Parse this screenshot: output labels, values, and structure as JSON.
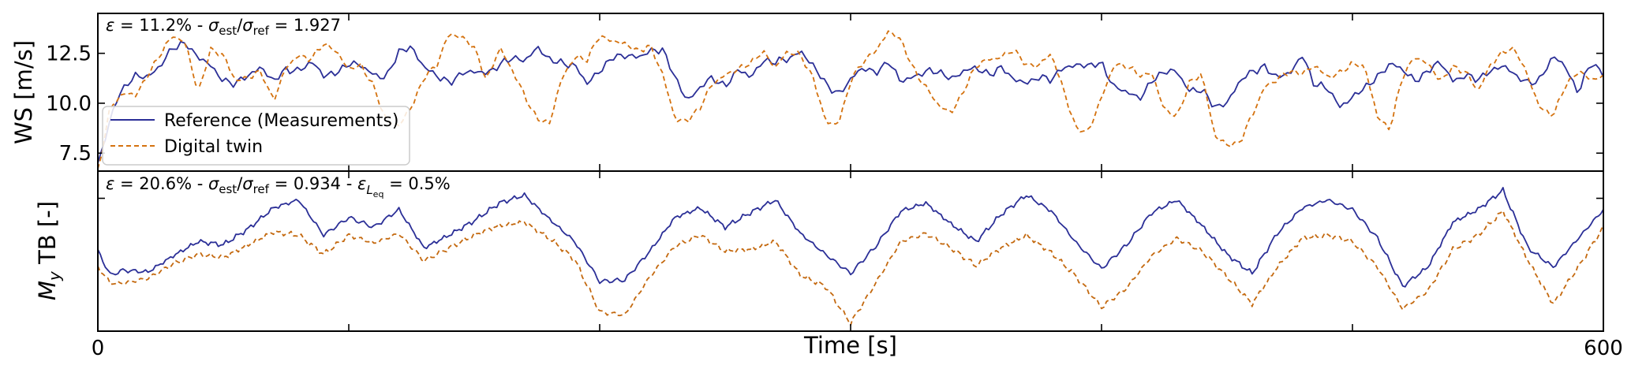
{
  "chart_data": [
    {
      "type": "line",
      "panel": "top",
      "annotation": "ε = 11.2% - σest/σref = 1.927",
      "ylabel": "WS [m/s]",
      "xlim": [
        0,
        600
      ],
      "ylim": [
        6.6,
        14.5
      ],
      "yticks": [
        7.5,
        10.0,
        12.5
      ],
      "ytick_labels": [
        "7.5",
        "10.0",
        "12.5"
      ],
      "grid": false,
      "legend": {
        "placement": "lower-left"
      },
      "series": [
        {
          "name": "Reference (Measurements)",
          "color": "#2b2f97",
          "style": "solid",
          "x": [
            0,
            8,
            15,
            20,
            25,
            30,
            35,
            40,
            45,
            50,
            55,
            60,
            65,
            70,
            75,
            80,
            85,
            90,
            95,
            100,
            105,
            110,
            115,
            120,
            125,
            130,
            135,
            140,
            145,
            150,
            155,
            160,
            165,
            170,
            175,
            180,
            185,
            190,
            195,
            200,
            205,
            210,
            215,
            220,
            225,
            230,
            235,
            240,
            245,
            250,
            255,
            260,
            265,
            270,
            275,
            280,
            285,
            290,
            295,
            300,
            305,
            310,
            315,
            320,
            325,
            330,
            335,
            340,
            345,
            350,
            355,
            360,
            365,
            370,
            375,
            380,
            385,
            390,
            395,
            400,
            405,
            410,
            415,
            420,
            425,
            430,
            435,
            440,
            445,
            450,
            455,
            460,
            465,
            470,
            475,
            480,
            485,
            490,
            495,
            500,
            505,
            510,
            515,
            520,
            525,
            530,
            535,
            540,
            545,
            550,
            555,
            560,
            565,
            570,
            575,
            580,
            585,
            590,
            595,
            600
          ],
          "values": [
            7.0,
            10.4,
            11.4,
            11.3,
            11.9,
            12.8,
            13.0,
            12.3,
            11.9,
            11.1,
            11.0,
            11.4,
            11.8,
            11.1,
            11.7,
            11.6,
            12.1,
            11.4,
            11.5,
            12.0,
            11.9,
            11.4,
            11.3,
            12.6,
            12.8,
            11.8,
            11.4,
            11.0,
            11.5,
            11.6,
            11.5,
            11.9,
            12.3,
            12.1,
            12.8,
            12.2,
            12.0,
            11.9,
            11.0,
            11.6,
            12.3,
            12.4,
            12.3,
            12.6,
            12.7,
            11.3,
            10.1,
            10.8,
            11.3,
            10.8,
            11.7,
            11.3,
            12.1,
            12.1,
            12.2,
            12.6,
            11.9,
            11.0,
            10.4,
            11.2,
            11.8,
            11.5,
            12.1,
            11.1,
            11.3,
            11.6,
            11.6,
            11.2,
            11.6,
            11.8,
            11.4,
            11.8,
            11.2,
            11.0,
            11.3,
            11.2,
            11.8,
            11.9,
            11.9,
            12.0,
            10.8,
            10.6,
            10.2,
            11.1,
            11.6,
            11.6,
            10.6,
            10.7,
            9.8,
            10.0,
            11.1,
            11.6,
            11.8,
            11.3,
            11.5,
            12.4,
            10.9,
            10.8,
            9.8,
            10.3,
            10.8,
            11.3,
            12.0,
            11.7,
            11.1,
            11.6,
            12.1,
            11.1,
            11.4,
            11.2,
            11.6,
            11.9,
            11.4,
            11.0,
            11.2,
            12.4,
            11.8,
            10.5,
            12.1,
            11.4
          ]
        },
        {
          "name": "Digital twin",
          "color": "#d4720f",
          "style": "dashed",
          "x": [
            0,
            5,
            10,
            15,
            20,
            25,
            30,
            35,
            40,
            45,
            50,
            55,
            60,
            65,
            70,
            75,
            80,
            85,
            90,
            95,
            100,
            105,
            110,
            115,
            120,
            125,
            130,
            135,
            140,
            145,
            150,
            155,
            160,
            165,
            170,
            175,
            180,
            185,
            190,
            195,
            200,
            205,
            210,
            215,
            220,
            225,
            230,
            235,
            240,
            245,
            250,
            255,
            260,
            265,
            270,
            275,
            280,
            285,
            290,
            295,
            300,
            305,
            310,
            315,
            320,
            325,
            330,
            335,
            340,
            345,
            350,
            355,
            360,
            365,
            370,
            375,
            380,
            385,
            390,
            395,
            400,
            405,
            410,
            415,
            420,
            425,
            430,
            435,
            440,
            445,
            450,
            455,
            460,
            465,
            470,
            475,
            480,
            485,
            490,
            495,
            500,
            505,
            510,
            515,
            520,
            525,
            530,
            535,
            540,
            545,
            550,
            555,
            560,
            565,
            570,
            575,
            580,
            585,
            590,
            595,
            600
          ],
          "values": [
            6.6,
            9.8,
            10.5,
            10.4,
            11.4,
            12.5,
            13.4,
            13.0,
            10.5,
            12.7,
            12.4,
            11.1,
            11.3,
            11.6,
            10.1,
            11.8,
            12.4,
            12.2,
            13.0,
            12.6,
            11.7,
            11.9,
            10.8,
            9.1,
            8.9,
            9.8,
            11.3,
            11.9,
            13.5,
            13.3,
            12.8,
            11.1,
            12.8,
            11.7,
            10.4,
            9.2,
            9.0,
            11.3,
            12.3,
            12.2,
            13.4,
            13.1,
            13.0,
            12.6,
            12.9,
            11.5,
            9.2,
            9.1,
            9.8,
            11.0,
            11.4,
            11.7,
            12.0,
            12.6,
            11.8,
            12.6,
            12.4,
            11.3,
            9.1,
            8.9,
            11.1,
            12.1,
            12.6,
            13.6,
            13.2,
            11.7,
            10.8,
            9.9,
            9.5,
            10.6,
            11.9,
            12.2,
            12.3,
            12.7,
            11.9,
            11.9,
            12.5,
            10.6,
            8.7,
            8.6,
            10.3,
            11.9,
            11.9,
            11.4,
            11.5,
            9.7,
            9.3,
            11.0,
            11.5,
            8.4,
            7.9,
            8.0,
            9.4,
            10.8,
            11.2,
            11.6,
            11.5,
            11.9,
            11.3,
            11.5,
            12.0,
            11.8,
            9.3,
            8.7,
            11.4,
            12.3,
            12.0,
            11.1,
            11.8,
            11.6,
            10.6,
            11.9,
            12.6,
            12.7,
            11.3,
            9.7,
            9.4,
            10.9,
            11.6,
            11.2,
            11.3
          ]
        }
      ]
    },
    {
      "type": "line",
      "panel": "bottom",
      "annotation": "ε = 20.6% - σest/σref = 0.934 - εL,eq = 0.5%",
      "ylabel": "My TB [-]",
      "xlabel": "Time [s]",
      "xlim": [
        0,
        600
      ],
      "xtick_labels": [
        "0",
        "600"
      ],
      "ylim": [
        0,
        1
      ],
      "grid": false,
      "series": [
        {
          "name": "Reference (Measurements)",
          "color": "#2b2f97",
          "style": "solid",
          "x": [
            0,
            5,
            10,
            20,
            30,
            40,
            50,
            60,
            70,
            80,
            90,
            100,
            110,
            120,
            130,
            140,
            150,
            160,
            170,
            180,
            190,
            200,
            210,
            220,
            230,
            240,
            250,
            260,
            270,
            280,
            290,
            300,
            310,
            320,
            330,
            340,
            350,
            360,
            370,
            380,
            390,
            400,
            410,
            420,
            430,
            440,
            450,
            460,
            470,
            480,
            490,
            500,
            510,
            520,
            530,
            540,
            550,
            560,
            570,
            580,
            590,
            600
          ],
          "values": [
            0.5,
            0.35,
            0.38,
            0.37,
            0.47,
            0.56,
            0.54,
            0.64,
            0.77,
            0.82,
            0.6,
            0.71,
            0.65,
            0.76,
            0.52,
            0.6,
            0.69,
            0.8,
            0.85,
            0.7,
            0.56,
            0.31,
            0.32,
            0.5,
            0.71,
            0.77,
            0.65,
            0.74,
            0.82,
            0.61,
            0.48,
            0.36,
            0.53,
            0.75,
            0.8,
            0.67,
            0.56,
            0.73,
            0.85,
            0.75,
            0.55,
            0.39,
            0.54,
            0.74,
            0.82,
            0.66,
            0.48,
            0.36,
            0.61,
            0.77,
            0.82,
            0.76,
            0.58,
            0.28,
            0.4,
            0.68,
            0.76,
            0.88,
            0.52,
            0.4,
            0.58,
            0.76
          ]
        },
        {
          "name": "Digital twin",
          "color": "#c4690f",
          "style": "dashed",
          "x": [
            0,
            5,
            10,
            20,
            30,
            40,
            50,
            60,
            70,
            80,
            90,
            100,
            110,
            120,
            130,
            140,
            150,
            160,
            170,
            180,
            190,
            200,
            210,
            220,
            230,
            240,
            250,
            260,
            270,
            280,
            290,
            300,
            310,
            320,
            330,
            340,
            350,
            360,
            370,
            380,
            390,
            400,
            410,
            420,
            430,
            440,
            450,
            460,
            470,
            480,
            490,
            500,
            510,
            520,
            530,
            540,
            550,
            560,
            570,
            580,
            590,
            600
          ],
          "values": [
            0.4,
            0.3,
            0.3,
            0.33,
            0.42,
            0.48,
            0.46,
            0.54,
            0.62,
            0.6,
            0.48,
            0.6,
            0.55,
            0.61,
            0.44,
            0.52,
            0.6,
            0.66,
            0.68,
            0.58,
            0.45,
            0.12,
            0.1,
            0.34,
            0.53,
            0.6,
            0.5,
            0.51,
            0.56,
            0.35,
            0.28,
            0.05,
            0.3,
            0.56,
            0.61,
            0.52,
            0.41,
            0.52,
            0.6,
            0.49,
            0.34,
            0.15,
            0.27,
            0.47,
            0.58,
            0.5,
            0.34,
            0.17,
            0.4,
            0.58,
            0.6,
            0.56,
            0.4,
            0.14,
            0.25,
            0.51,
            0.6,
            0.75,
            0.44,
            0.17,
            0.4,
            0.65
          ]
        }
      ]
    }
  ]
}
